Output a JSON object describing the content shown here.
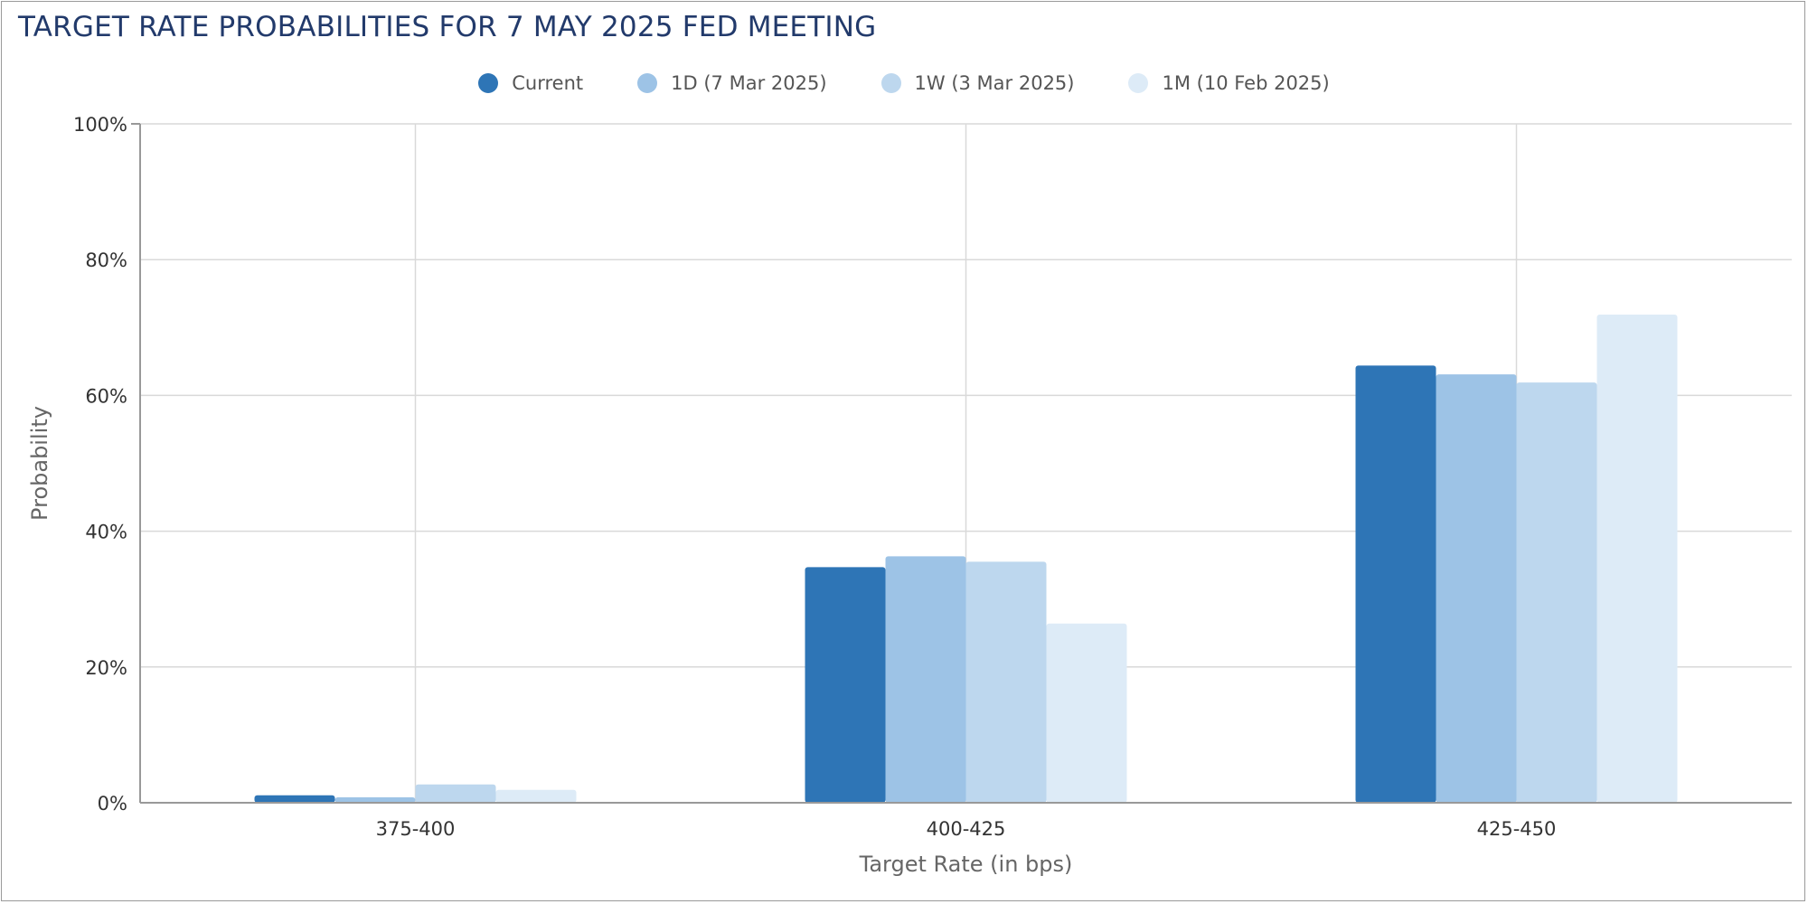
{
  "chart_data": {
    "type": "bar",
    "title": "TARGET RATE PROBABILITIES FOR 7 MAY 2025 FED MEETING",
    "xlabel": "Target Rate (in bps)",
    "ylabel": "Probability",
    "categories": [
      "375-400",
      "400-425",
      "425-450"
    ],
    "ylim": [
      0,
      100
    ],
    "yticks": [
      "0%",
      "20%",
      "40%",
      "60%",
      "80%",
      "100%"
    ],
    "grid": true,
    "legend_position": "top-center",
    "series": [
      {
        "name": "Current",
        "color": "#2e75b6",
        "values": [
          1.1,
          34.7,
          64.4
        ]
      },
      {
        "name": "1D (7 Mar 2025)",
        "color": "#9dc3e6",
        "values": [
          0.8,
          36.3,
          63.1
        ]
      },
      {
        "name": "1W (3 Mar 2025)",
        "color": "#bdd7ee",
        "values": [
          2.7,
          35.5,
          61.9
        ]
      },
      {
        "name": "1M (10 Feb 2025)",
        "color": "#ddebf7",
        "values": [
          1.9,
          26.4,
          71.9
        ]
      }
    ]
  }
}
